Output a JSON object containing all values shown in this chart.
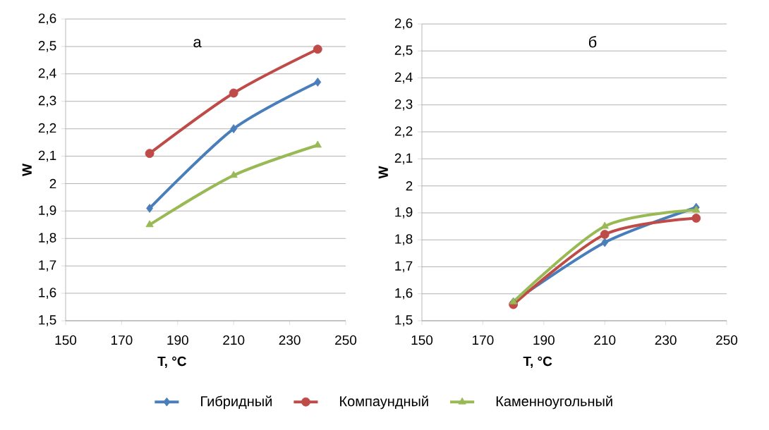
{
  "chart_data": [
    {
      "type": "line",
      "x": [
        180,
        210,
        240
      ],
      "ylabel": "W",
      "xlabel": "T, °C",
      "annotations": [
        "а"
      ],
      "grid": "y",
      "legend": "bottom",
      "xlim": [
        150,
        250
      ],
      "xticks": [
        150,
        170,
        190,
        210,
        230,
        250
      ],
      "ylim": [
        1.5,
        2.6
      ],
      "yticks": [
        {
          "value": 1.5,
          "label": "1,5"
        },
        {
          "value": 1.6,
          "label": "1,6"
        },
        {
          "value": 1.7,
          "label": "1,7"
        },
        {
          "value": 1.8,
          "label": "1,8"
        },
        {
          "value": 1.9,
          "label": "1,9"
        },
        2,
        {
          "value": 2.1,
          "label": "2,1"
        },
        {
          "value": 2.2,
          "label": "2,2"
        },
        {
          "value": 2.3,
          "label": "2,3"
        },
        {
          "value": 2.4,
          "label": "2,4"
        },
        {
          "value": 2.5,
          "label": "2,5"
        },
        {
          "value": 2.6,
          "label": "2,6"
        }
      ],
      "series": [
        {
          "name": "Гибридный",
          "color": "#4a7ebb",
          "marker": "diamond",
          "values": [
            1.91,
            2.2,
            2.37
          ]
        },
        {
          "name": "Компаундный",
          "color": "#be4b48",
          "marker": "circle",
          "values": [
            2.11,
            2.33,
            2.49
          ]
        },
        {
          "name": "Каменноугольный",
          "color": "#98b954",
          "marker": "triangle",
          "values": [
            1.85,
            2.03,
            2.14
          ]
        }
      ]
    },
    {
      "type": "line",
      "x": [
        180,
        210,
        240
      ],
      "ylabel": "W",
      "xlabel": "T, °C",
      "annotations": [
        "б"
      ],
      "grid": "y",
      "xlim": [
        150,
        250
      ],
      "xticks": [
        150,
        170,
        190,
        210,
        230,
        250
      ],
      "ylim": [
        1.5,
        2.6
      ],
      "yticks": [
        {
          "value": 1.5,
          "label": "1,5"
        },
        {
          "value": 1.6,
          "label": "1,6"
        },
        {
          "value": 1.7,
          "label": "1,7"
        },
        {
          "value": 1.8,
          "label": "1,8"
        },
        {
          "value": 1.9,
          "label": "1,9"
        },
        2,
        {
          "value": 2.1,
          "label": "2,1"
        },
        {
          "value": 2.2,
          "label": "2,2"
        },
        {
          "value": 2.3,
          "label": "2,3"
        },
        {
          "value": 2.4,
          "label": "2,4"
        },
        {
          "value": 2.5,
          "label": "2,5"
        },
        {
          "value": 2.6,
          "label": "2,6"
        }
      ],
      "series": [
        {
          "color": "#4a7ebb",
          "marker": "diamond",
          "values": [
            1.57,
            1.79,
            1.92
          ]
        },
        {
          "color": "#be4b48",
          "marker": "circle",
          "values": [
            1.56,
            1.82,
            1.88
          ]
        },
        {
          "color": "#98b954",
          "marker": "triangle",
          "values": [
            1.57,
            1.85,
            1.91
          ]
        }
      ]
    }
  ]
}
